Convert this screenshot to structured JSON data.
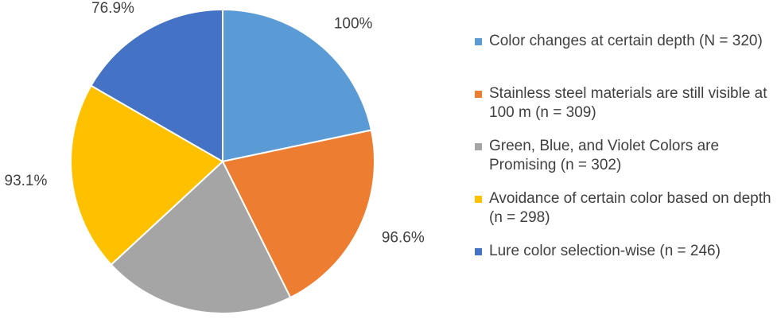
{
  "chart_data": {
    "type": "pie",
    "categories": [
      "Color changes at certain depth (N = 320)",
      "Stainless steel materials are still visible at 100 m (n = 309)",
      "Green, Blue, and Violet Colors are Promising (n = 302)",
      "Avoidance of certain color based on depth (n = 298)",
      "Lure color selection-wise (n = 246)"
    ],
    "values": [
      100,
      96.6,
      94.4,
      93.1,
      76.9
    ],
    "value_labels": [
      "100%",
      "96.6%",
      null,
      "93.1%",
      "76.9%"
    ],
    "colors": [
      "#5b9bd5",
      "#ed7d31",
      "#a5a5a5",
      "#ffc000",
      "#4472c4"
    ],
    "legend": "right"
  }
}
